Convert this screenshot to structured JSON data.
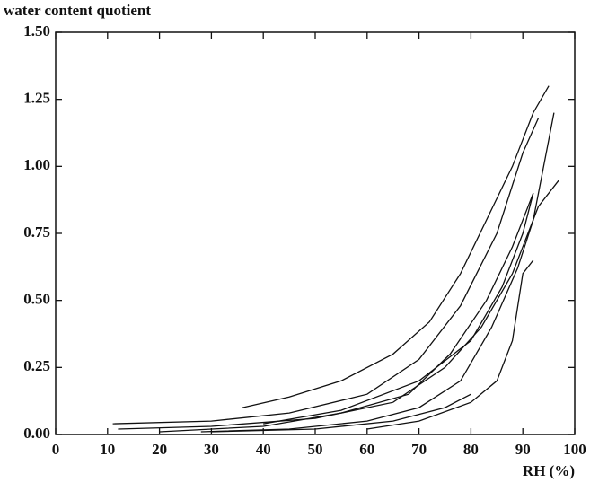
{
  "chart_data": {
    "type": "line",
    "ylabel": "water content quotient",
    "xlabel": "RH (%)",
    "xlim": [
      0,
      100
    ],
    "xticks": [
      0,
      10,
      20,
      30,
      40,
      50,
      60,
      70,
      80,
      90,
      100
    ],
    "ylim": [
      0,
      1.5
    ],
    "yticks": [
      {
        "value": 0,
        "label": "0.00"
      },
      {
        "value": 0.25,
        "label": "0.25"
      },
      {
        "value": 0.5,
        "label": "0.50"
      },
      {
        "value": 0.75,
        "label": "0.75"
      },
      {
        "value": 1,
        "label": "1.00"
      },
      {
        "value": 1.25,
        "label": "1.25"
      },
      {
        "value": 1.5,
        "label": "1.50"
      }
    ],
    "series": [
      {
        "color": "#111111",
        "x": [
          36,
          45,
          55,
          65,
          72,
          78,
          83,
          88,
          92,
          95
        ],
        "values": [
          0.1,
          0.14,
          0.2,
          0.3,
          0.42,
          0.6,
          0.8,
          1.0,
          1.2,
          1.3
        ]
      },
      {
        "color": "#111111",
        "x": [
          11,
          30,
          45,
          60,
          70,
          78,
          85,
          90,
          93
        ],
        "values": [
          0.04,
          0.05,
          0.08,
          0.15,
          0.28,
          0.48,
          0.75,
          1.05,
          1.18
        ]
      },
      {
        "color": "#111111",
        "x": [
          12,
          30,
          50,
          65,
          75,
          82,
          88,
          93,
          97
        ],
        "values": [
          0.02,
          0.03,
          0.06,
          0.12,
          0.25,
          0.4,
          0.6,
          0.85,
          0.95
        ]
      },
      {
        "color": "#111111",
        "x": [
          20,
          40,
          55,
          68,
          76,
          83,
          88,
          92
        ],
        "values": [
          0.01,
          0.03,
          0.08,
          0.15,
          0.3,
          0.5,
          0.7,
          0.9
        ]
      },
      {
        "color": "#111111",
        "x": [
          28,
          45,
          60,
          70,
          78,
          84,
          89,
          92,
          96
        ],
        "values": [
          0.01,
          0.02,
          0.05,
          0.1,
          0.2,
          0.4,
          0.62,
          0.8,
          1.2
        ]
      },
      {
        "color": "#111111",
        "x": [
          30,
          50,
          65,
          75,
          80
        ],
        "values": [
          0.01,
          0.02,
          0.05,
          0.1,
          0.15
        ]
      },
      {
        "color": "#111111",
        "x": [
          40,
          55,
          70,
          80,
          86,
          90,
          92
        ],
        "values": [
          0.04,
          0.09,
          0.2,
          0.35,
          0.55,
          0.75,
          0.9
        ]
      },
      {
        "color": "#111111",
        "x": [
          60,
          70,
          80,
          85,
          88,
          90,
          92
        ],
        "values": [
          0.02,
          0.05,
          0.12,
          0.2,
          0.35,
          0.6,
          0.65
        ]
      }
    ]
  }
}
